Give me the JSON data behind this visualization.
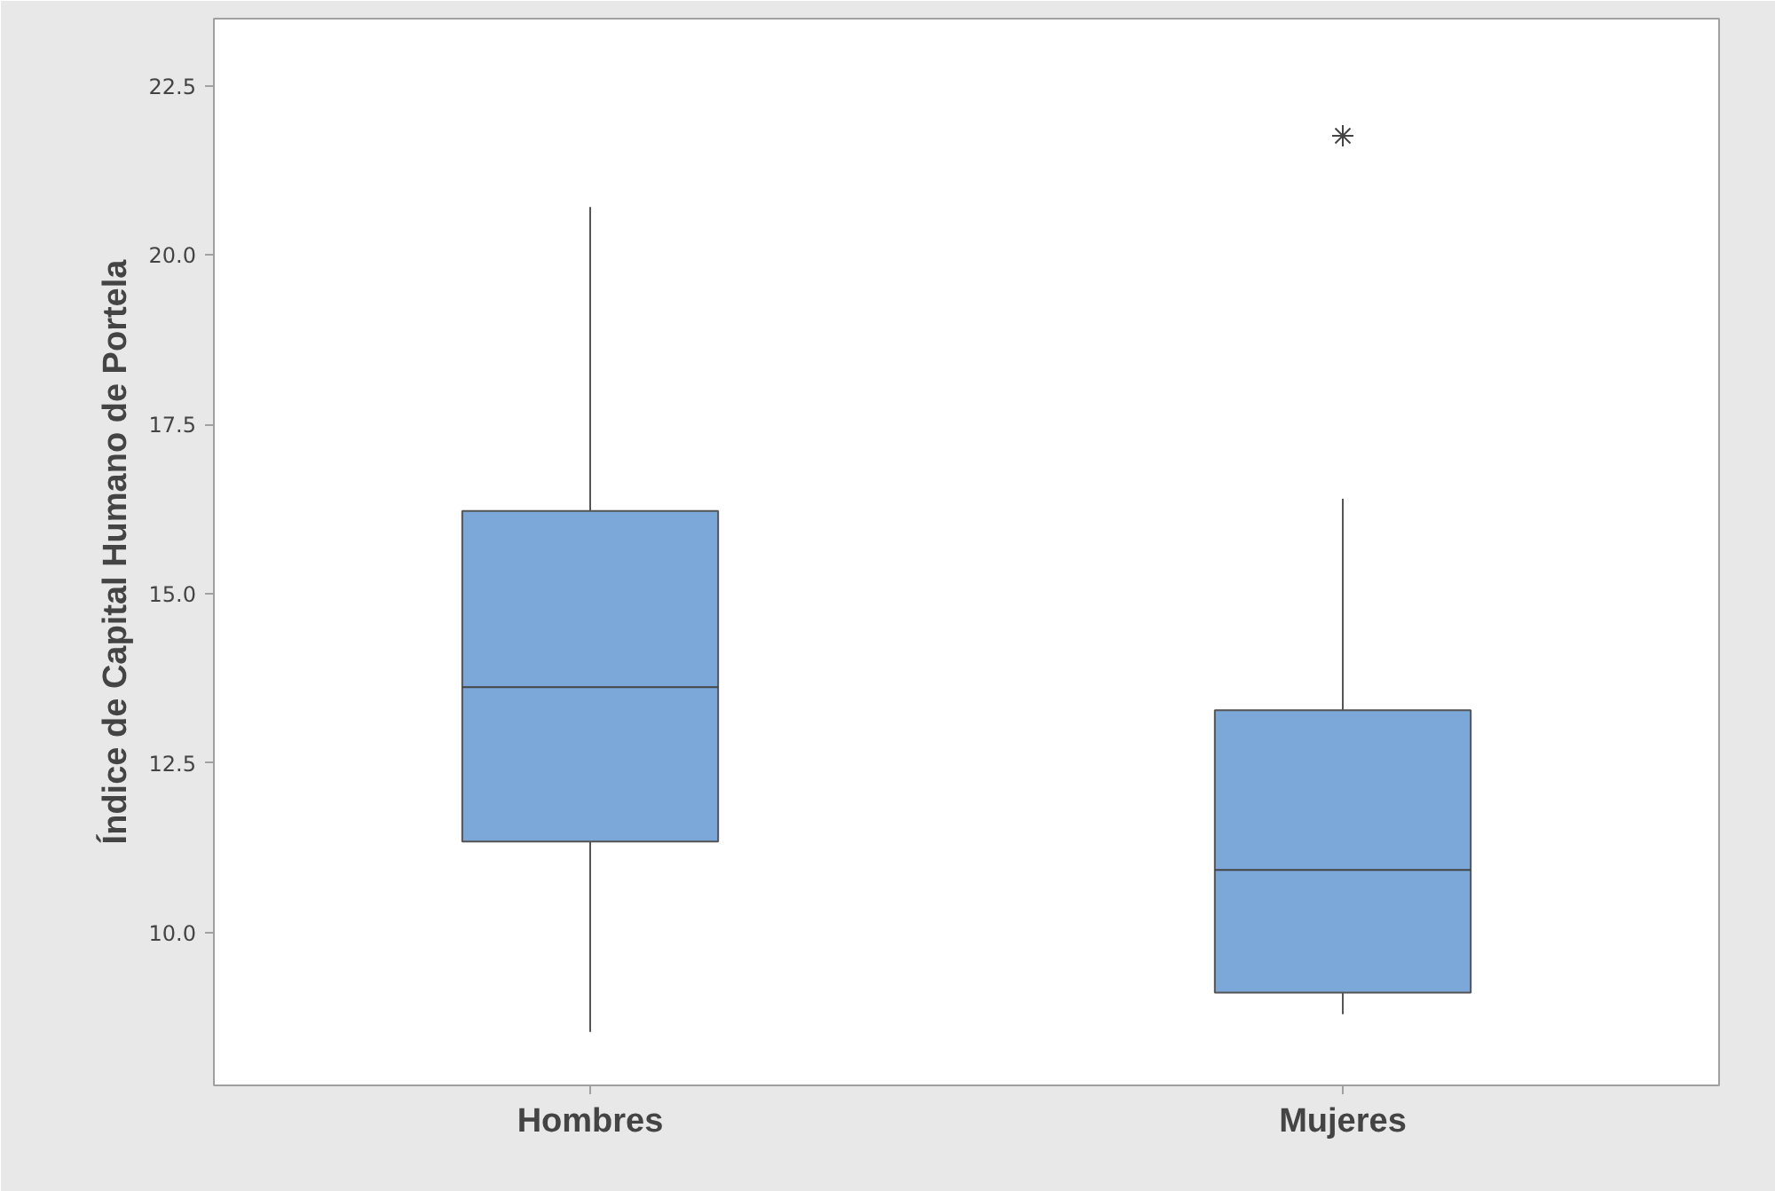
{
  "chart_data": {
    "type": "box",
    "ylabel": "Índice de Capital Humano de Portela",
    "categories": [
      "Hombres",
      "Mujeres"
    ],
    "boxes": [
      {
        "low": 8.53,
        "q1": 11.34,
        "median": 13.62,
        "q3": 16.22,
        "high": 20.71
      },
      {
        "low": 8.79,
        "q1": 9.11,
        "median": 10.92,
        "q3": 13.28,
        "high": 16.4,
        "outliers": [
          21.76
        ]
      }
    ],
    "color": "#7ba7d9",
    "ylim": [
      7.74,
      23.49
    ],
    "yticks": [
      {
        "value": 10,
        "label": "10.0"
      },
      {
        "value": 12.5,
        "label": "12.5"
      },
      {
        "value": 15,
        "label": "15.0"
      },
      {
        "value": 17.5,
        "label": "17.5"
      },
      {
        "value": 20,
        "label": "20.0"
      },
      {
        "value": 22.5,
        "label": "22.5"
      }
    ],
    "grid": false
  }
}
